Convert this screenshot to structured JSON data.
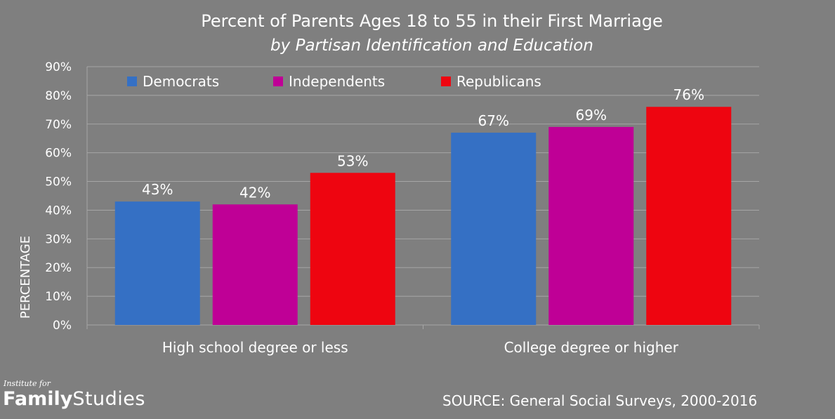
{
  "chart_data": {
    "type": "bar",
    "title": "Percent of Parents Ages 18 to 55 in their First Marriage",
    "subtitle": "by Partisan Identification and Education",
    "ylabel": "PERCENTAGE",
    "xlabel": "",
    "ylim": [
      0,
      90
    ],
    "ytick_labels": [
      "0%",
      "10%",
      "20%",
      "30%",
      "40%",
      "50%",
      "60%",
      "70%",
      "80%",
      "90%"
    ],
    "grid": true,
    "legend_position": "top",
    "categories": [
      "High school degree or less",
      "College degree or higher"
    ],
    "series": [
      {
        "name": "Democrats",
        "values": [
          43,
          67
        ],
        "labels": [
          "43%",
          "67%"
        ],
        "color": "#3570c4"
      },
      {
        "name": "Independents",
        "values": [
          42,
          69
        ],
        "labels": [
          "42%",
          "69%"
        ],
        "color": "#bf0096"
      },
      {
        "name": "Republicans",
        "values": [
          53,
          76
        ],
        "labels": [
          "53%",
          "76%"
        ],
        "color": "#ee0510"
      }
    ]
  },
  "logo": {
    "line1": "Institute for",
    "bold": "Family",
    "light": "Studies"
  },
  "source": "SOURCE: General Social Surveys, 2000-2016",
  "colors": {
    "background": "#7f7f7f",
    "text": "#ffffff",
    "gridline": "#a6a6a6"
  }
}
